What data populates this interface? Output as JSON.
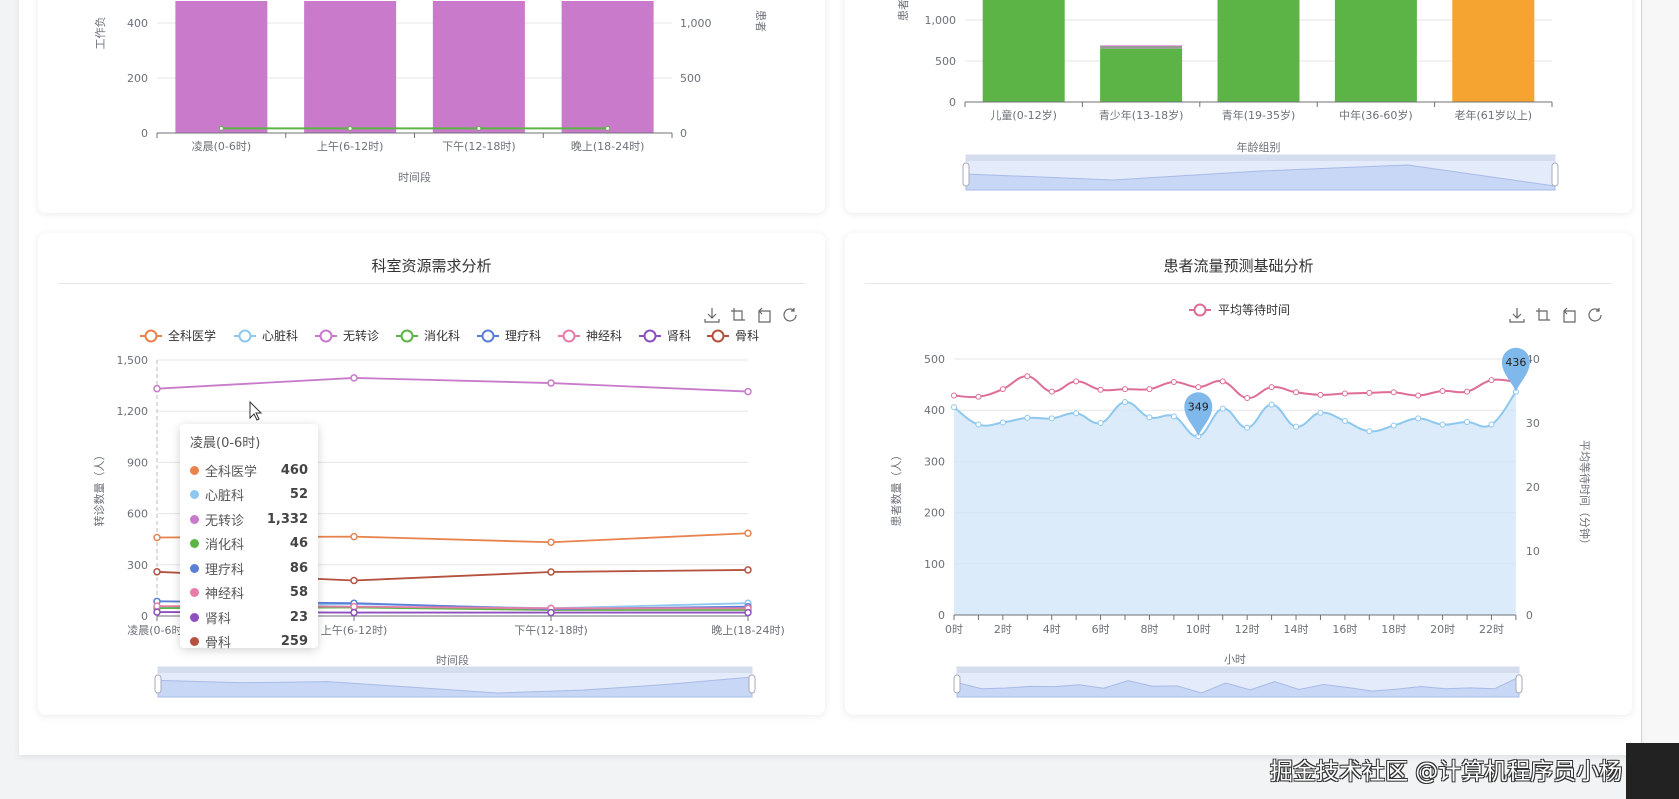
{
  "colors": {
    "magenta": "#c97acb",
    "green": "#5db446",
    "orange": "#f5a431",
    "blue": "#8ec8ee",
    "pink": "#de6d98"
  },
  "chart_data": [
    {
      "type": "bar",
      "title": "",
      "xlabel": "时间段",
      "ylabel": "工作负",
      "ylabel_right": "患者",
      "categories": [
        "凌晨(0-6时)",
        "上午(6-12时)",
        "下午(12-18时)",
        "晚上(18-24时)"
      ],
      "yticks": [
        "0",
        "200",
        "400"
      ],
      "yticks_right": [
        "0",
        "500",
        "1,000"
      ],
      "series": [
        {
          "name": "bar",
          "axis": "left",
          "values": [
            480,
            480,
            480,
            480
          ]
        },
        {
          "name": "line",
          "axis": "right",
          "values": [
            42,
            42,
            42,
            42
          ]
        }
      ]
    },
    {
      "type": "bar",
      "xlabel": "年龄组别",
      "ylabel": "患者",
      "categories": [
        "儿童(0-12岁)",
        "青少年(13-18岁)",
        "青年(19-35岁)",
        "中年(36-60岁)",
        "老年(61岁以上)"
      ],
      "yticks": [
        "0",
        "500",
        "1,000"
      ],
      "series": [
        {
          "name": "main",
          "values": [
            1300,
            650,
            1300,
            1300,
            1300
          ]
        },
        {
          "name": "gray",
          "values": [
            0,
            35,
            0,
            0,
            0
          ]
        },
        {
          "name": "pink",
          "values": [
            0,
            10,
            0,
            0,
            0
          ]
        }
      ]
    },
    {
      "type": "line",
      "title": "科室资源需求分析",
      "xlabel": "时间段",
      "ylabel": "转诊数量（人）",
      "categories": [
        "凌晨(0-6时)",
        "上午(6-12时)",
        "下午(12-18时)",
        "晚上(18-24时)"
      ],
      "yticks": [
        "0",
        "300",
        "600",
        "900",
        "1,200",
        "1,500"
      ],
      "ylim": [
        0,
        1500
      ],
      "series": [
        {
          "name": "全科医学",
          "color": "#e8834d",
          "values": [
            460,
            465,
            432,
            485
          ]
        },
        {
          "name": "心脏科",
          "color": "#8ec8ee",
          "values": [
            52,
            70,
            45,
            75
          ]
        },
        {
          "name": "无转诊",
          "color": "#c97acb",
          "values": [
            1332,
            1395,
            1365,
            1315
          ]
        },
        {
          "name": "消化科",
          "color": "#5db446",
          "values": [
            46,
            50,
            35,
            35
          ]
        },
        {
          "name": "理疗科",
          "color": "#5b7fd6",
          "values": [
            86,
            75,
            40,
            55
          ]
        },
        {
          "name": "神经科",
          "color": "#e87ca8",
          "values": [
            58,
            55,
            45,
            45
          ]
        },
        {
          "name": "肾科",
          "color": "#8e4fbf",
          "values": [
            23,
            20,
            20,
            20
          ]
        },
        {
          "name": "骨科",
          "color": "#b5523f",
          "values": [
            259,
            208,
            258,
            270
          ]
        }
      ],
      "tooltip": {
        "title": "凌晨(0-6时)",
        "values": [
          "460",
          "52",
          "1,332",
          "46",
          "86",
          "58",
          "23",
          "259"
        ]
      }
    },
    {
      "type": "line",
      "title": "患者流量预测基础分析",
      "xlabel": "小时",
      "ylabel": "患者数量（人）",
      "ylabel_right": "平均等待时间（分钟）",
      "legend": [
        "平均等待时间"
      ],
      "xticks": [
        "0时",
        "2时",
        "4时",
        "6时",
        "8时",
        "10时",
        "12时",
        "14时",
        "16时",
        "18时",
        "20时",
        "22时"
      ],
      "yticks": [
        "0",
        "100",
        "200",
        "300",
        "400",
        "500"
      ],
      "yticks_right": [
        "0",
        "10",
        "20",
        "30",
        "40"
      ],
      "ylim": [
        0,
        500
      ],
      "ylim_right": [
        0,
        40
      ],
      "series": [
        {
          "name": "患者数量",
          "type": "area",
          "values": [
            406,
            372,
            376,
            385,
            384,
            394,
            375,
            416,
            386,
            388,
            349,
            403,
            366,
            411,
            368,
            395,
            379,
            359,
            370,
            384,
            372,
            377,
            372,
            436
          ]
        },
        {
          "name": "平均等待时间",
          "values": [
            34.3,
            34.1,
            35.3,
            37.3,
            34.9,
            36.5,
            35.2,
            35.3,
            35.3,
            36.4,
            35.6,
            36.5,
            33.9,
            35.6,
            34.8,
            34.4,
            34.6,
            34.7,
            34.8,
            34.3,
            35.0,
            34.9,
            36.7,
            36.4
          ]
        }
      ],
      "markpoints": [
        {
          "label": "349",
          "hour": 10
        },
        {
          "label": "436",
          "hour": 23
        }
      ]
    }
  ],
  "watermark": "掘金技术社区 @计算机程序员小杨"
}
